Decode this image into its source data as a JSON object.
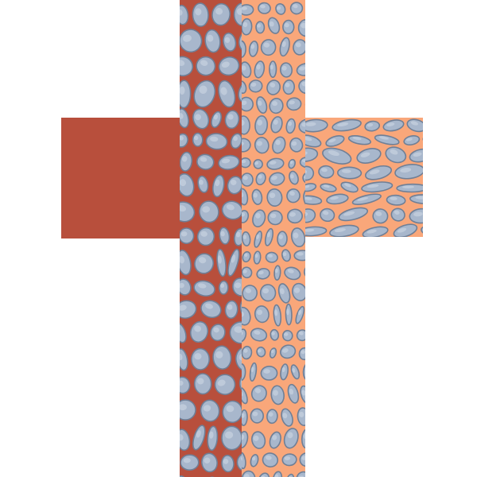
{
  "palette": {
    "background": "#ffffff",
    "shadow_fill": "#b84f3c",
    "lit_fill": "#f9a77a",
    "stone_fill": "#a8b7cc",
    "stone_outline": "#6f7f96",
    "stone_highlight": "#c7d2e0"
  },
  "tiles": [
    {
      "name": "cross-left-arm-tile",
      "surface": "flat",
      "tone": "shadow"
    },
    {
      "name": "cross-vertical-shadow-tile",
      "surface": "cobblestone",
      "tone": "shadow"
    },
    {
      "name": "cross-vertical-lit-tile",
      "surface": "cobblestone",
      "tone": "lit"
    },
    {
      "name": "cross-right-arm-tile",
      "surface": "cobblestone",
      "tone": "lit"
    }
  ]
}
